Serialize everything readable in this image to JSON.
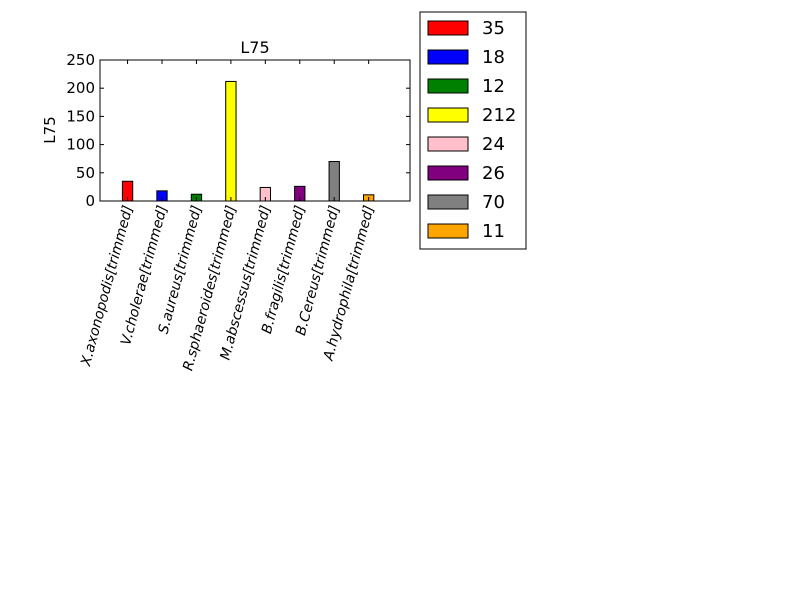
{
  "chart_data": {
    "type": "bar",
    "title": "L75",
    "xlabel": "",
    "ylabel": "L75",
    "ylim": [
      0,
      250
    ],
    "yticks": [
      0,
      50,
      100,
      150,
      200,
      250
    ],
    "grid": false,
    "legend_position": "outside-top-right",
    "categories": [
      "X.axonopodis[trimmed]",
      "V.cholerae[trimmed]",
      "S.aureus[trimmed]",
      "R.sphaeroides[trimmed]",
      "M.abscessus[trimmed]",
      "B.fragilis[trimmed]",
      "B.Cereus[trimmed]",
      "A.hydrophila[trimmed]"
    ],
    "values": [
      35,
      18,
      12,
      212,
      24,
      26,
      70,
      11
    ],
    "colors": [
      "#ff0000",
      "#0000ff",
      "#008000",
      "#ffff00",
      "#ffc0cb",
      "#800080",
      "#808080",
      "#ffa500"
    ],
    "legend": [
      "35",
      "18",
      "12",
      "212",
      "24",
      "26",
      "70",
      "11"
    ]
  }
}
